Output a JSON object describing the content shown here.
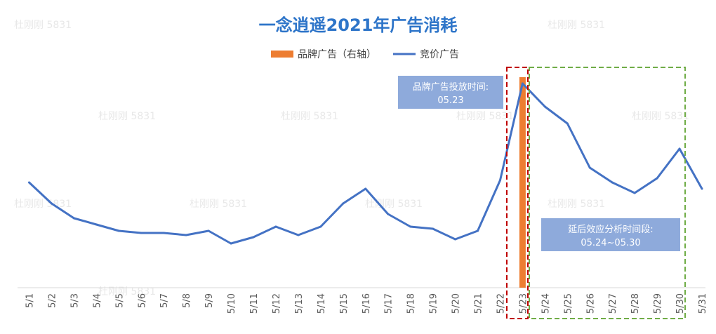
{
  "chart_data": {
    "type": "bar+line",
    "title": "一念逍遥2021年广告消耗",
    "categories": [
      "5/1",
      "5/2",
      "5/3",
      "5/4",
      "5/5",
      "5/6",
      "5/7",
      "5/8",
      "5/9",
      "5/10",
      "5/11",
      "5/12",
      "5/13",
      "5/14",
      "5/15",
      "5/16",
      "5/17",
      "5/18",
      "5/19",
      "5/20",
      "5/21",
      "5/22",
      "5/23",
      "5/24",
      "5/25",
      "5/26",
      "5/27",
      "5/28",
      "5/29",
      "5/30",
      "5/31"
    ],
    "series": [
      {
        "name": "品牌广告（右轴）",
        "kind": "bar",
        "axis": "right",
        "color": "#ed7d31",
        "values": [
          0,
          0,
          0,
          0,
          0,
          0,
          0,
          0,
          0,
          0,
          0,
          0,
          0,
          0,
          0,
          0,
          0,
          0,
          0,
          0,
          0,
          0,
          100,
          0,
          0,
          0,
          0,
          0,
          0,
          0,
          0
        ]
      },
      {
        "name": "竞价广告",
        "kind": "line",
        "axis": "left",
        "color": "#4472c4",
        "values": [
          50,
          40,
          33,
          30,
          27,
          26,
          26,
          25,
          27,
          21,
          24,
          29,
          25,
          29,
          40,
          47,
          35,
          29,
          28,
          23,
          27,
          51,
          97,
          86,
          78,
          57,
          50,
          45,
          52,
          66,
          47
        ]
      }
    ],
    "xlabel": "",
    "ylabel": "",
    "left_ylim": [
      0,
      100
    ],
    "right_ylim": [
      0,
      100
    ],
    "grid": false,
    "legend_position": "top-center",
    "annotations": [
      {
        "text_lines": [
          "品牌广告投放时间:",
          "05.23"
        ],
        "color": "#8eaadb",
        "box_color": "#c00000",
        "box_style": "dashed",
        "range": [
          "5/23",
          "5/23"
        ]
      },
      {
        "text_lines": [
          "延后效应分析时间段:",
          "05.24~05.30"
        ],
        "color": "#8eaadb",
        "box_color": "#70ad47",
        "box_style": "dashed",
        "range": [
          "5/24",
          "5/30"
        ]
      }
    ]
  }
}
